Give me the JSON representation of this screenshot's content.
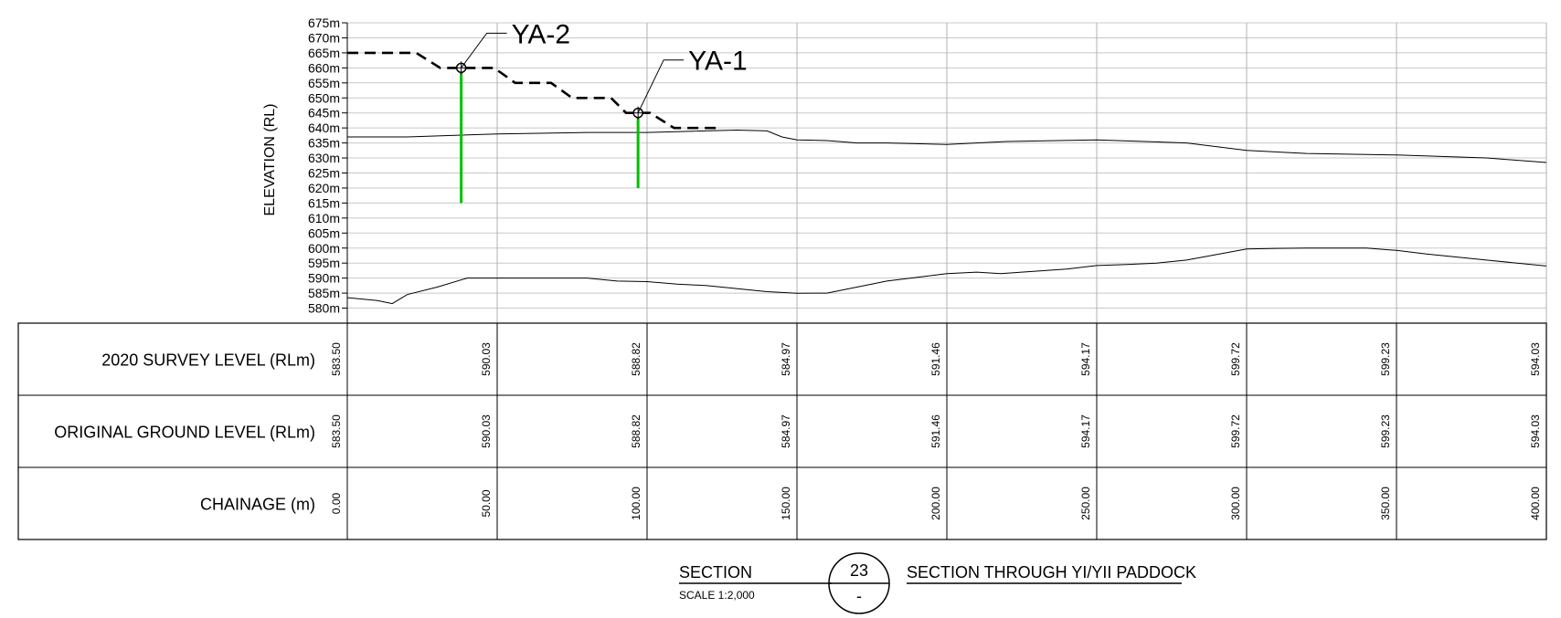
{
  "elevation_axis": {
    "title": "ELEVATION (RL)",
    "tick_labels": [
      "675m",
      "670m",
      "665m",
      "660m",
      "655m",
      "650m",
      "645m",
      "640m",
      "635m",
      "630m",
      "625m",
      "620m",
      "615m",
      "610m",
      "605m",
      "600m",
      "595m",
      "590m",
      "585m",
      "580m"
    ]
  },
  "boreholes": [
    {
      "label": "YA-2",
      "chainage": 38,
      "top": 660,
      "bottom": 615,
      "color": "#00c000"
    },
    {
      "label": "YA-1",
      "chainage": 97,
      "top": 645,
      "bottom": 620,
      "color": "#00c000"
    }
  ],
  "table": {
    "rows": [
      {
        "label": "2020 SURVEY LEVEL (RLm)",
        "values": [
          "583.50",
          "590.03",
          "588.82",
          "584.97",
          "591.46",
          "594.17",
          "599.72",
          "599.23",
          "594.03"
        ]
      },
      {
        "label": "ORIGINAL GROUND LEVEL (RLm)",
        "values": [
          "583.50",
          "590.03",
          "588.82",
          "584.97",
          "591.46",
          "594.17",
          "599.72",
          "599.23",
          "594.03"
        ]
      },
      {
        "label": "CHAINAGE (m)",
        "values": [
          "0.00",
          "50.00",
          "100.00",
          "150.00",
          "200.00",
          "250.00",
          "300.00",
          "350.00",
          "400.00"
        ]
      }
    ]
  },
  "title_block": {
    "section_label": "SECTION",
    "scale_label": "SCALE 1:2,000",
    "section_number": "23",
    "section_sub": "-",
    "section_title": "SECTION THROUGH YI/YII PADDOCK"
  },
  "chart_data": {
    "type": "line",
    "x_range": [
      0,
      400
    ],
    "y_range": [
      575,
      675
    ],
    "grid": true,
    "series": [
      {
        "name": "",
        "style": "solid",
        "x": [
          0,
          10,
          15,
          20,
          30,
          40,
          50,
          60,
          80,
          90,
          100,
          110,
          120,
          140,
          150,
          160,
          180,
          200,
          210,
          218,
          225,
          240,
          250,
          260,
          270,
          280,
          300,
          310,
          320,
          340,
          350,
          360,
          380,
          400
        ],
        "y": [
          583.5,
          582.5,
          581.5,
          584.5,
          587,
          590,
          590.03,
          590.03,
          590,
          589,
          588.82,
          588,
          587.5,
          585.5,
          584.97,
          585,
          589,
          591.46,
          592,
          591.5,
          592,
          593,
          594.17,
          594.5,
          595,
          596,
          599.72,
          599.9,
          600,
          600,
          599.23,
          598,
          596,
          594.03
        ]
      },
      {
        "name": "",
        "style": "solid",
        "x": [
          0,
          20,
          50,
          80,
          100,
          130,
          140,
          145,
          150,
          160,
          170,
          180,
          200,
          220,
          250,
          280,
          300,
          320,
          350,
          380,
          400
        ],
        "y": [
          637,
          637,
          638,
          638.5,
          638.5,
          639.3,
          639,
          637,
          636,
          635.8,
          635,
          635,
          634.5,
          635.5,
          636,
          635,
          632.5,
          631.5,
          631,
          630,
          628.5
        ],
        "note": ""
      },
      {
        "name": "",
        "style": "dashed",
        "x": [
          0,
          23,
          31,
          49,
          56,
          68,
          75,
          88,
          93,
          101,
          109,
          123,
          125
        ],
        "y": [
          665,
          665,
          660,
          660,
          655,
          655,
          650,
          650,
          645,
          645,
          640,
          640,
          640
        ]
      }
    ]
  }
}
